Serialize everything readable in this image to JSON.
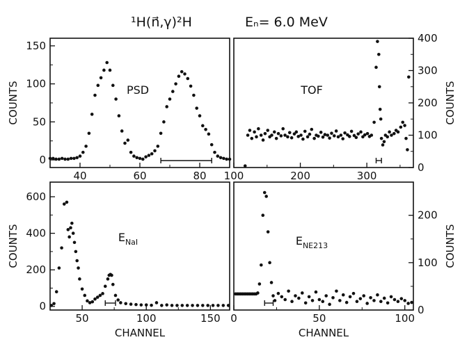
{
  "figure": {
    "title_reaction": "¹H(n⃗,γ)²H",
    "title_energy": "Eₙ= 6.0 MeV"
  },
  "chart_data": [
    {
      "id": "psd",
      "type": "scatter",
      "panel_label": "PSD",
      "xlabel": "",
      "ylabel": "COUNTS",
      "y_axis_side": "left",
      "xlim": [
        30,
        90
      ],
      "ylim": [
        -10,
        160
      ],
      "x_ticks": [
        40,
        60,
        80
      ],
      "y_ticks": [
        0,
        50,
        100,
        150
      ],
      "gate": [
        67,
        84
      ],
      "x": [
        30,
        31,
        32,
        33,
        34,
        35,
        36,
        37,
        38,
        39,
        40,
        41,
        42,
        43,
        44,
        45,
        46,
        47,
        48,
        49,
        50,
        51,
        52,
        53,
        54,
        55,
        56,
        57,
        58,
        59,
        60,
        61,
        62,
        63,
        64,
        65,
        66,
        67,
        68,
        69,
        70,
        71,
        72,
        73,
        74,
        75,
        76,
        77,
        78,
        79,
        80,
        81,
        82,
        83,
        84,
        85,
        86,
        87,
        88,
        89,
        90
      ],
      "y": [
        2,
        2,
        1,
        1,
        2,
        1,
        1,
        2,
        2,
        3,
        5,
        10,
        18,
        35,
        60,
        85,
        98,
        108,
        118,
        128,
        118,
        98,
        80,
        58,
        38,
        22,
        26,
        10,
        5,
        3,
        2,
        1,
        4,
        6,
        8,
        12,
        18,
        35,
        50,
        70,
        80,
        90,
        100,
        110,
        116,
        113,
        107,
        97,
        85,
        68,
        58,
        45,
        40,
        34,
        20,
        10,
        5,
        3,
        2,
        1,
        1
      ]
    },
    {
      "id": "tof",
      "type": "scatter",
      "panel_label": "TOF",
      "xlabel": "",
      "ylabel": "COUNTS",
      "y_axis_side": "right",
      "xlim": [
        100,
        370
      ],
      "ylim": [
        0,
        400
      ],
      "x_ticks": [
        100,
        200,
        300
      ],
      "y_ticks": [
        0,
        100,
        200,
        300,
        400
      ],
      "gate": [
        314,
        322
      ],
      "x": [
        117,
        121,
        124,
        127,
        131,
        134,
        137,
        141,
        144,
        147,
        151,
        154,
        157,
        161,
        164,
        167,
        171,
        174,
        177,
        181,
        184,
        187,
        191,
        194,
        197,
        201,
        204,
        207,
        211,
        214,
        217,
        221,
        224,
        227,
        231,
        234,
        237,
        241,
        244,
        247,
        251,
        254,
        257,
        261,
        264,
        267,
        271,
        274,
        277,
        281,
        284,
        287,
        291,
        294,
        297,
        301,
        304,
        307,
        311,
        314,
        316,
        318,
        319,
        320,
        321,
        322,
        324,
        326,
        328,
        331,
        334,
        337,
        341,
        344,
        347,
        351,
        354,
        357,
        359,
        361,
        363
      ],
      "y": [
        5,
        100,
        115,
        90,
        110,
        95,
        120,
        100,
        85,
        105,
        115,
        95,
        100,
        110,
        90,
        105,
        98,
        120,
        100,
        95,
        108,
        92,
        104,
        110,
        96,
        100,
        88,
        112,
        95,
        103,
        118,
        90,
        100,
        97,
        109,
        94,
        102,
        100,
        91,
        106,
        98,
        113,
        95,
        100,
        89,
        107,
        101,
        96,
        112,
        99,
        93,
        104,
        110,
        95,
        101,
        105,
        96,
        100,
        140,
        310,
        390,
        350,
        250,
        180,
        150,
        90,
        70,
        80,
        100,
        95,
        110,
        100,
        105,
        115,
        110,
        125,
        140,
        130,
        90,
        55,
        280
      ]
    },
    {
      "id": "enai",
      "type": "scatter",
      "panel_label": "E_NaI",
      "xlabel": "CHANNEL",
      "ylabel": "COUNTS",
      "y_axis_side": "left",
      "xlim": [
        25,
        165
      ],
      "ylim": [
        -20,
        680
      ],
      "x_ticks": [
        50,
        100,
        150
      ],
      "y_ticks": [
        0,
        200,
        400,
        600
      ],
      "gate": [
        68,
        76
      ],
      "x": [
        26,
        28,
        30,
        32,
        34,
        36,
        38,
        39,
        40,
        41,
        42,
        43,
        44,
        45,
        46,
        47,
        48,
        50,
        52,
        54,
        56,
        58,
        60,
        62,
        64,
        66,
        68,
        70,
        71,
        72,
        73,
        74,
        76,
        78,
        80,
        84,
        88,
        92,
        96,
        100,
        104,
        108,
        112,
        116,
        120,
        124,
        128,
        132,
        136,
        140,
        144,
        148,
        152,
        156,
        160,
        164
      ],
      "y": [
        5,
        15,
        80,
        210,
        320,
        560,
        570,
        420,
        380,
        430,
        455,
        400,
        350,
        300,
        250,
        210,
        150,
        95,
        60,
        30,
        20,
        25,
        40,
        50,
        60,
        70,
        110,
        150,
        170,
        175,
        170,
        120,
        60,
        35,
        20,
        15,
        12,
        10,
        8,
        8,
        6,
        20,
        5,
        8,
        5,
        5,
        5,
        5,
        5,
        5,
        5,
        5,
        5,
        5,
        5,
        5
      ]
    },
    {
      "id": "ene213",
      "type": "scatter",
      "panel_label": "E_NE213",
      "xlabel": "CHANNEL",
      "ylabel": "COUNTS",
      "y_axis_side": "right",
      "xlim": [
        0,
        105
      ],
      "ylim": [
        0,
        270
      ],
      "x_ticks": [
        0,
        50,
        100
      ],
      "y_ticks": [
        0,
        100,
        200
      ],
      "gate": [
        18,
        23
      ],
      "x": [
        1,
        2,
        3,
        4,
        5,
        6,
        7,
        8,
        9,
        10,
        11,
        12,
        13,
        14,
        15,
        16,
        17,
        18,
        19,
        20,
        21,
        22,
        23,
        24,
        26,
        28,
        30,
        32,
        34,
        36,
        38,
        40,
        42,
        44,
        46,
        48,
        50,
        52,
        54,
        56,
        58,
        60,
        62,
        64,
        66,
        68,
        70,
        72,
        74,
        76,
        78,
        80,
        82,
        84,
        86,
        88,
        90,
        92,
        94,
        96,
        98,
        100,
        102,
        104
      ],
      "y": [
        34,
        34,
        34,
        34,
        34,
        34,
        34,
        34,
        34,
        34,
        34,
        34,
        34,
        36,
        55,
        95,
        200,
        248,
        240,
        165,
        100,
        58,
        30,
        20,
        35,
        28,
        22,
        40,
        18,
        30,
        25,
        36,
        15,
        28,
        20,
        38,
        22,
        18,
        30,
        12,
        26,
        40,
        20,
        32,
        16,
        28,
        35,
        18,
        24,
        30,
        14,
        26,
        20,
        32,
        18,
        25,
        15,
        28,
        22,
        18,
        24,
        20,
        14,
        16
      ]
    }
  ]
}
